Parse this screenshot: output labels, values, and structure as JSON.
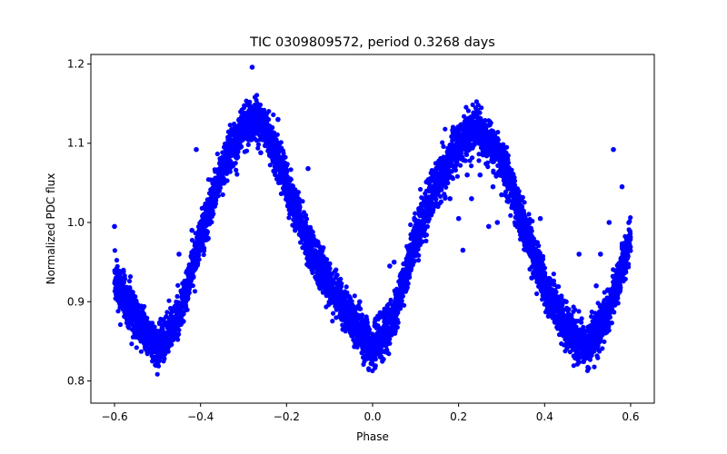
{
  "chart_data": {
    "type": "scatter",
    "title": "TIC 0309809572, period 0.3268 days",
    "xlabel": "Phase",
    "ylabel": "Normalized PDC flux",
    "xlim": [
      -0.655,
      0.655
    ],
    "ylim": [
      0.772,
      1.212
    ],
    "xticks": [
      -0.6,
      -0.4,
      -0.2,
      0.0,
      0.2,
      0.4,
      0.6
    ],
    "xtick_labels": [
      "−0.6",
      "−0.4",
      "−0.2",
      "0.0",
      "0.2",
      "0.4",
      "0.6"
    ],
    "yticks": [
      0.8,
      0.9,
      1.0,
      1.1,
      1.2
    ],
    "ytick_labels": [
      "0.8",
      "0.9",
      "1.0",
      "1.1",
      "1.2"
    ],
    "grid": false,
    "marker_color": "#0000ff",
    "series": [
      {
        "curve": {
          "x": [
            -0.6,
            -0.55,
            -0.5,
            -0.45,
            -0.4,
            -0.35,
            -0.3,
            -0.27,
            -0.25,
            -0.2,
            -0.15,
            -0.1,
            -0.05,
            0.0,
            0.05,
            0.1,
            0.15,
            0.2,
            0.24,
            0.3,
            0.35,
            0.4,
            0.45,
            0.5,
            0.55,
            0.6
          ],
          "y": [
            0.93,
            0.88,
            0.84,
            0.88,
            0.98,
            1.07,
            1.12,
            1.13,
            1.12,
            1.05,
            0.97,
            0.92,
            0.88,
            0.84,
            0.88,
            0.98,
            1.05,
            1.1,
            1.12,
            1.08,
            1.0,
            0.92,
            0.87,
            0.84,
            0.89,
            0.98
          ]
        },
        "outliers": {
          "x": [
            -0.6,
            -0.45,
            -0.42,
            -0.41,
            -0.39,
            -0.28,
            -0.26,
            -0.25,
            -0.22,
            -0.18,
            -0.17,
            -0.15,
            -0.05,
            -0.03,
            0.04,
            0.05,
            0.18,
            0.2,
            0.21,
            0.22,
            0.23,
            0.25,
            0.27,
            0.28,
            0.29,
            0.3,
            0.33,
            0.37,
            0.39,
            0.45,
            0.48,
            0.52,
            0.53,
            0.55,
            0.56,
            0.58
          ],
          "y": [
            0.995,
            0.96,
            0.99,
            1.092,
            1.02,
            1.196,
            1.088,
            1.097,
            1.13,
            0.99,
            0.985,
            1.068,
            0.86,
            0.9,
            0.945,
            0.95,
            1.03,
            1.005,
            0.965,
            1.06,
            1.03,
            1.06,
            0.995,
            1.045,
            1.0,
            1.035,
            1.02,
            0.93,
            1.005,
            0.9,
            0.96,
            0.92,
            0.96,
            1.0,
            1.092,
            1.045
          ]
        }
      }
    ]
  }
}
